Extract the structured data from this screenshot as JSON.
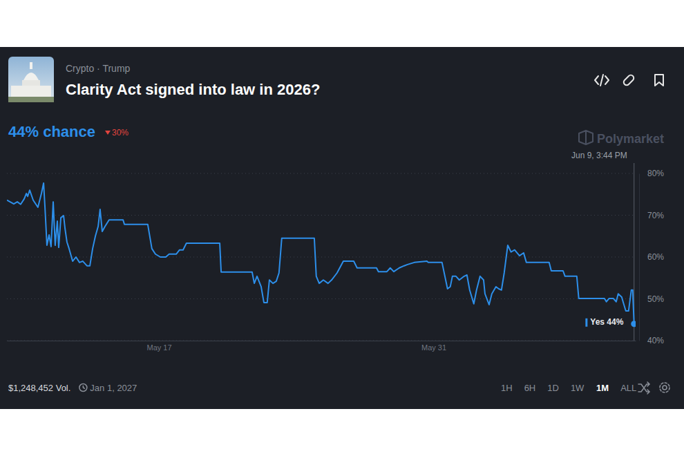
{
  "chart_data": {
    "type": "line",
    "category": "Crypto · Trump",
    "title": "Clarity Act signed into law in 2026?",
    "headline": "44% chance",
    "change": "30%",
    "watermark": "Polymarket",
    "hover_label": "Jun 9, 3:44 PM",
    "end_label": "Yes 44%",
    "volume": "$1,248,452 Vol.",
    "end_date": "Jan 1, 2027",
    "ranges": [
      "1H",
      "6H",
      "1D",
      "1W",
      "1M",
      "ALL"
    ],
    "selected_range": "1M",
    "color": "#2d8fea",
    "x": [
      9.25,
      9.6,
      9.78,
      9.95,
      10.13,
      10.24,
      10.31,
      10.41,
      10.59,
      10.83,
      11.01,
      11.12,
      11.19,
      11.29,
      11.4,
      11.5,
      11.61,
      11.71,
      11.82,
      11.89,
      12.0,
      12.14,
      12.21,
      12.31,
      12.42,
      12.6,
      12.77,
      12.95,
      13.12,
      13.33,
      13.48,
      13.62,
      13.76,
      13.9,
      14.0,
      14.11,
      14.25,
      14.46,
      15.17,
      15.24,
      16.22,
      16.43,
      16.64,
      16.82,
      17.07,
      17.35,
      17.52,
      17.88,
      18.05,
      18.23,
      18.4,
      20.1,
      20.17,
      21.75,
      21.86,
      22.0,
      22.21,
      22.35,
      22.52,
      22.63,
      22.81,
      22.98,
      23.12,
      23.26,
      24.92,
      25.02,
      25.17,
      25.38,
      25.62,
      25.8,
      26.08,
      26.4,
      26.93,
      27.1,
      28.09,
      28.19,
      28.62,
      28.79,
      28.97,
      29.25,
      29.5,
      29.67,
      30.02,
      30.66,
      30.73,
      31.43,
      31.71,
      31.85,
      31.96,
      32.14,
      32.31,
      32.56,
      32.7,
      32.84,
      33.05,
      33.19,
      33.37,
      33.55,
      33.62,
      33.83,
      33.97,
      34.18,
      34.32,
      34.46,
      34.6,
      34.78,
      34.95,
      35.13,
      35.38,
      35.59,
      35.73,
      36.89,
      37.0,
      37.6,
      37.7,
      38.3,
      38.4,
      39.71,
      39.81,
      39.95,
      40.16,
      40.31,
      40.41,
      40.59,
      40.69,
      40.8,
      40.94,
      41.08,
      41.15,
      41.22
    ],
    "values": [
      73.6,
      72.7,
      73.2,
      72.6,
      73.9,
      75.2,
      74.5,
      76.0,
      73.6,
      71.9,
      75.2,
      77.7,
      71.9,
      62.8,
      65.3,
      62.5,
      73.2,
      62.8,
      68.6,
      62.3,
      69.4,
      69.9,
      66.9,
      63.6,
      62.0,
      59.0,
      60.0,
      58.7,
      59.0,
      57.9,
      57.9,
      62.0,
      65.0,
      67.3,
      71.4,
      66.1,
      67.3,
      68.9,
      68.9,
      67.8,
      67.8,
      67.8,
      62.0,
      60.7,
      60.0,
      60.0,
      60.7,
      60.7,
      61.7,
      61.7,
      63.3,
      63.3,
      56.4,
      56.4,
      53.7,
      55.4,
      52.9,
      49.1,
      49.1,
      54.5,
      53.7,
      54.2,
      56.2,
      64.5,
      64.5,
      55.4,
      53.7,
      54.5,
      53.7,
      54.5,
      56.2,
      59.0,
      59.0,
      57.4,
      57.4,
      56.5,
      56.5,
      57.4,
      56.5,
      57.4,
      57.9,
      58.2,
      58.7,
      59.0,
      58.7,
      58.7,
      52.4,
      52.9,
      55.4,
      55.4,
      54.5,
      55.4,
      55.7,
      52.1,
      48.8,
      52.1,
      55.4,
      54.5,
      51.2,
      48.6,
      51.2,
      52.9,
      52.4,
      52.1,
      56.2,
      62.8,
      61.2,
      61.7,
      60.3,
      61.0,
      58.7,
      58.7,
      56.7,
      56.7,
      55.4,
      55.4,
      50.1,
      50.1,
      49.3,
      50.1,
      50.1,
      49.3,
      51.2,
      50.4,
      48.8,
      47.1,
      47.1,
      52.1,
      52.1,
      44
    ],
    "xlim": [
      9.25,
      41.3
    ],
    "xticks": [
      {
        "value": 17,
        "label": "May 17"
      },
      {
        "value": 31,
        "label": "May 31"
      }
    ],
    "ylim": [
      40,
      80
    ],
    "yticks": [
      {
        "value": 40,
        "label": "40%"
      },
      {
        "value": 50,
        "label": "50%"
      },
      {
        "value": 60,
        "label": "60%"
      },
      {
        "value": 70,
        "label": "70%"
      },
      {
        "value": 80,
        "label": "80%"
      }
    ],
    "grid": true
  }
}
